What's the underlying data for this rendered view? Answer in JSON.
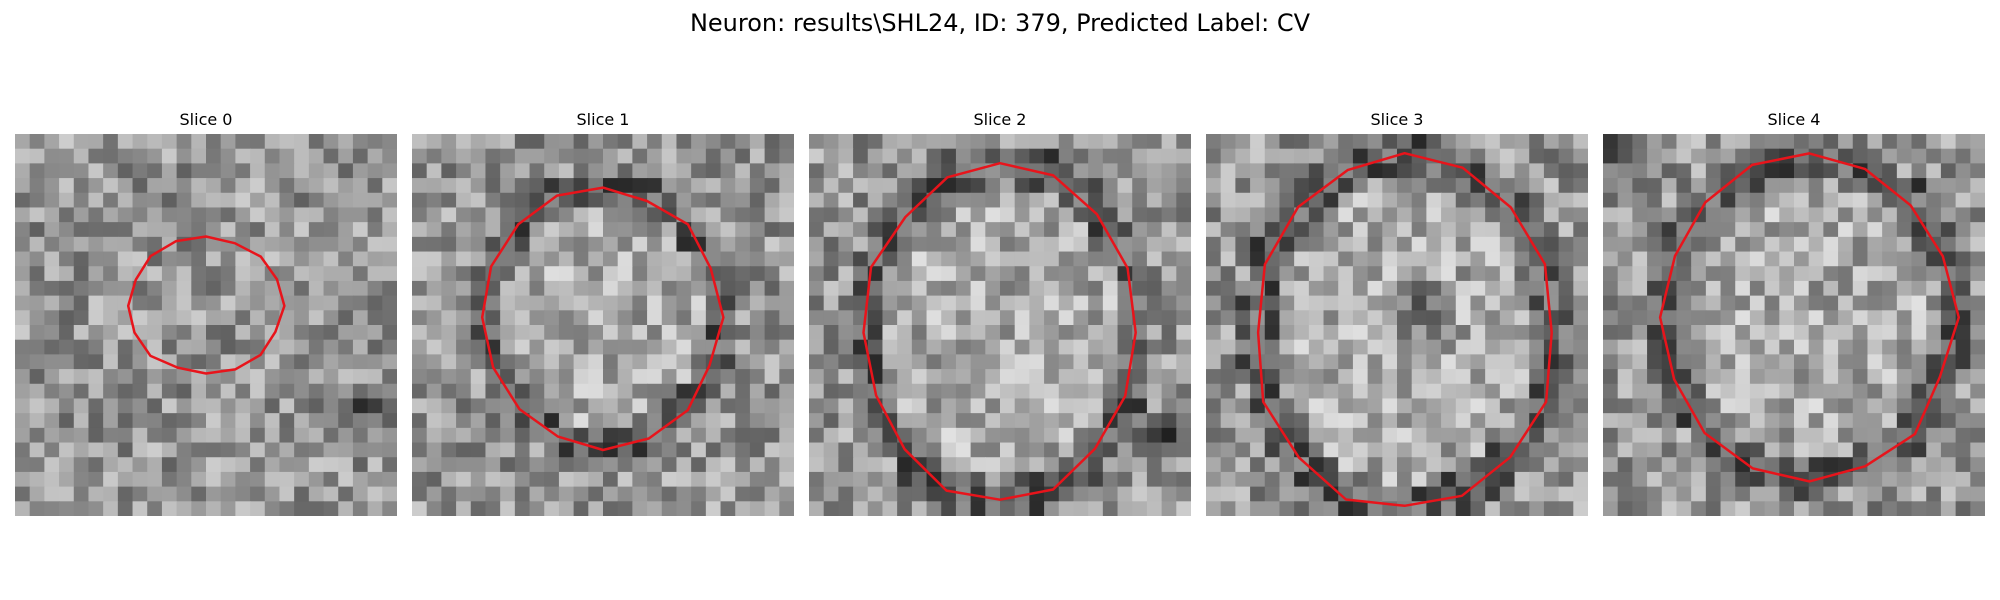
{
  "figure": {
    "title": "Neuron: results\\SHL24, ID: 379, Predicted Label: CV"
  },
  "panels": [
    {
      "title": "Slice 0",
      "contour_color": "#e8141b",
      "contour_scale": 0.54
    },
    {
      "title": "Slice 1",
      "contour_color": "#e8141b",
      "contour_scale": 0.93
    },
    {
      "title": "Slice 2",
      "contour_color": "#e8141b",
      "contour_scale": 1.07
    },
    {
      "title": "Slice 3",
      "contour_color": "#e8141b",
      "contour_scale": 1.11
    },
    {
      "title": "Slice 4",
      "contour_color": "#e8141b",
      "contour_scale": 1.05
    }
  ],
  "colormap": "gray"
}
